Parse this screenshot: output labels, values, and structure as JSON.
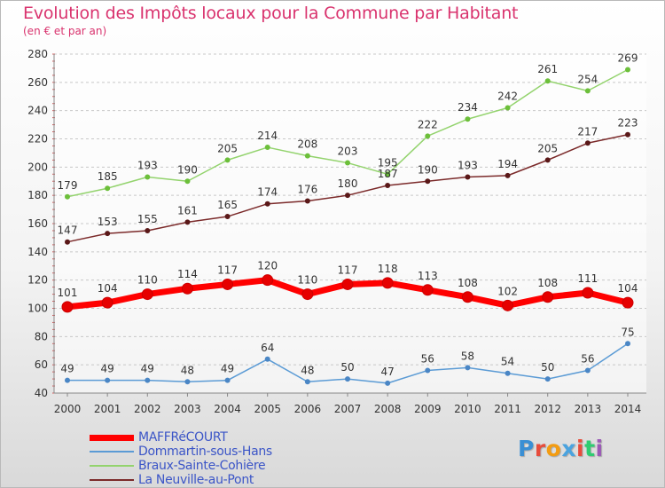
{
  "chart_title": "Evolution des Impôts locaux pour la Commune par Habitant",
  "chart_subtitle": "(en € et par an)",
  "brand_logo": {
    "text": "Proxiti",
    "letter_colors": [
      "#3a8fd4",
      "#e74c3c",
      "#f39c12",
      "#4aa3df",
      "#e74c3c",
      "#2ecc71",
      "#9b59b6"
    ]
  },
  "chart_data": {
    "type": "line",
    "title": "Evolution des Impôts locaux pour la Commune par Habitant",
    "subtitle": "(en € et par an)",
    "xlabel": "",
    "ylabel": "",
    "x": [
      "2000",
      "2001",
      "2002",
      "2003",
      "2004",
      "2005",
      "2006",
      "2007",
      "2008",
      "2009",
      "2010",
      "2011",
      "2012",
      "2013",
      "2014"
    ],
    "ylim": [
      40,
      280
    ],
    "yticks": [
      40,
      60,
      80,
      100,
      120,
      140,
      160,
      180,
      200,
      220,
      240,
      260,
      280
    ],
    "grid": "horizontal",
    "legend_position": "bottom-left",
    "series": [
      {
        "name": "MAFFRéCOURT",
        "color": "#ff0000",
        "marker_color": "#e60000",
        "width": 7,
        "values": [
          101,
          104,
          110,
          114,
          117,
          120,
          110,
          117,
          118,
          113,
          108,
          102,
          108,
          111,
          104
        ]
      },
      {
        "name": "Dommartin-sous-Hans",
        "color": "#5b9bd5",
        "marker_color": "#4a86c5",
        "width": 1.5,
        "values": [
          49,
          49,
          49,
          48,
          49,
          64,
          48,
          50,
          47,
          56,
          58,
          54,
          50,
          56,
          75
        ]
      },
      {
        "name": "Braux-Sainte-Cohière",
        "color": "#93d36d",
        "marker_color": "#6cbf3a",
        "width": 1.5,
        "values": [
          179,
          185,
          193,
          190,
          205,
          214,
          208,
          203,
          195,
          222,
          234,
          242,
          261,
          254,
          269
        ]
      },
      {
        "name": "La Neuville-au-Pont",
        "color": "#7b2a2a",
        "marker_color": "#5a1818",
        "width": 1.5,
        "values": [
          147,
          153,
          155,
          161,
          165,
          174,
          176,
          180,
          187,
          190,
          193,
          194,
          205,
          217,
          223
        ]
      }
    ]
  }
}
